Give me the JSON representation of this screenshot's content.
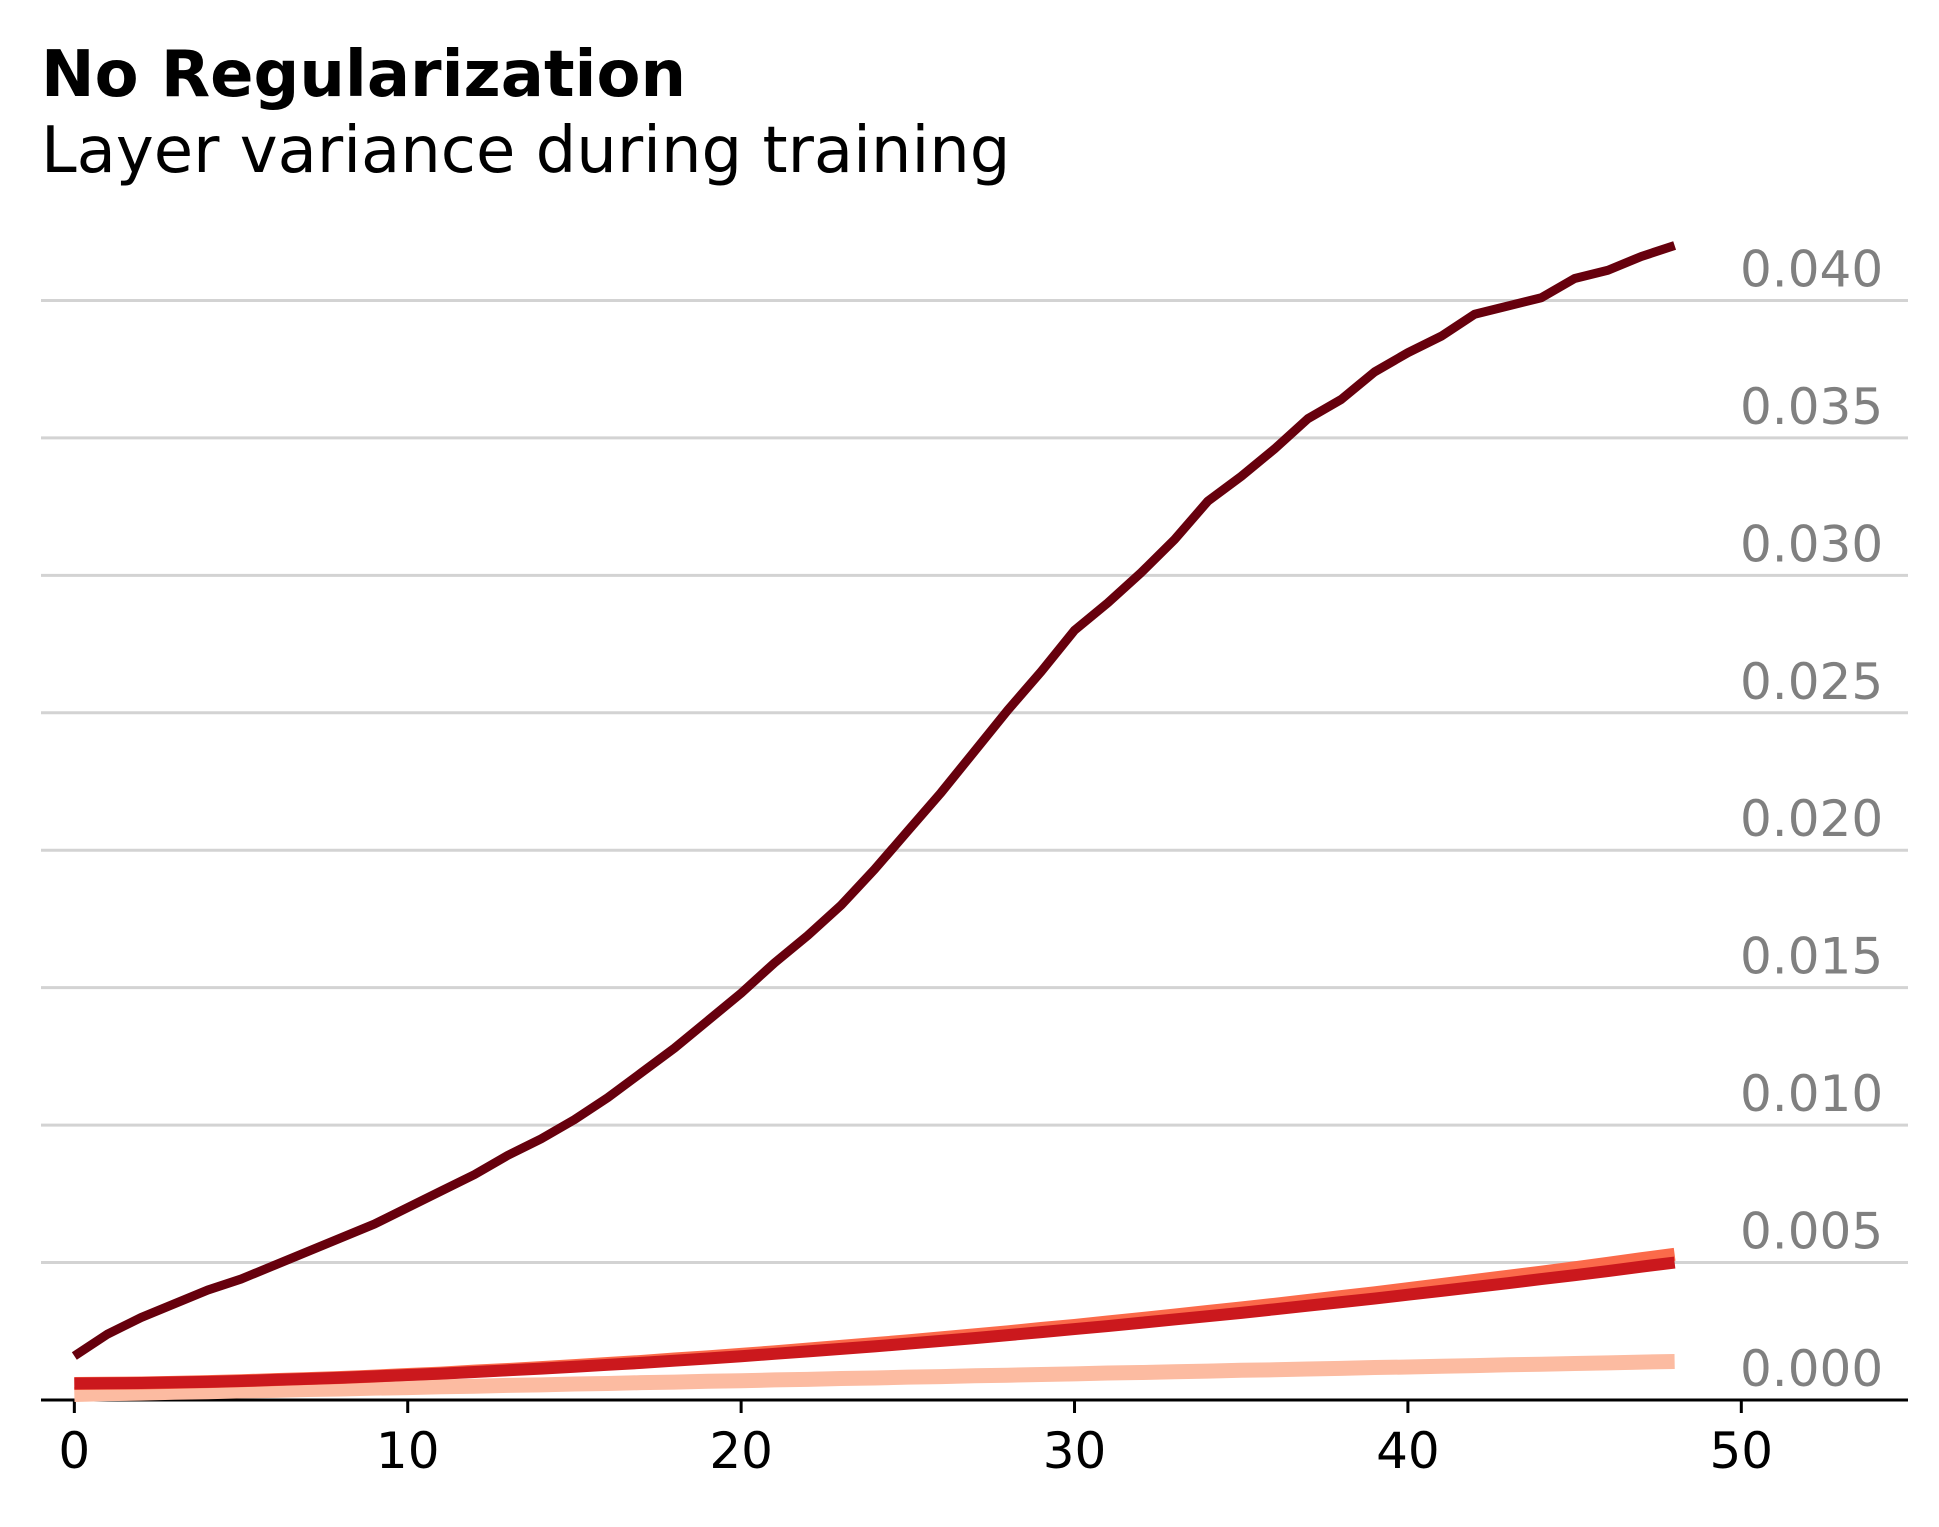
{
  "chart_data": {
    "type": "line",
    "title": "No Regularization",
    "subtitle": "Layer variance during training",
    "x": [
      0,
      1,
      2,
      3,
      4,
      5,
      6,
      7,
      8,
      9,
      10,
      11,
      12,
      13,
      14,
      15,
      16,
      17,
      18,
      19,
      20,
      21,
      22,
      23,
      24,
      25,
      26,
      27,
      28,
      29,
      30,
      31,
      32,
      33,
      34,
      35,
      36,
      37,
      38,
      39,
      40,
      41,
      42,
      43,
      44,
      45,
      46,
      47,
      48
    ],
    "series": [
      {
        "color": "#fcbba1",
        "values": [
          0.0002,
          0.00023,
          0.00025,
          0.00028,
          0.0003,
          0.00033,
          0.00035,
          0.00038,
          0.0004,
          0.00043,
          0.00045,
          0.00048,
          0.0005,
          0.00053,
          0.00055,
          0.00058,
          0.0006,
          0.00063,
          0.00065,
          0.00068,
          0.0007,
          0.00073,
          0.00075,
          0.00078,
          0.0008,
          0.00083,
          0.00085,
          0.00088,
          0.0009,
          0.00093,
          0.00095,
          0.00098,
          0.001,
          0.00103,
          0.00105,
          0.00108,
          0.0011,
          0.00113,
          0.00115,
          0.00118,
          0.0012,
          0.00123,
          0.00125,
          0.00128,
          0.0013,
          0.00133,
          0.00135,
          0.00138,
          0.0014
        ]
      },
      {
        "color": "#fb6a4a",
        "values": [
          0.0006,
          0.00061,
          0.00062,
          0.00064,
          0.00067,
          0.0007,
          0.00074,
          0.00078,
          0.00082,
          0.00087,
          0.00093,
          0.00098,
          0.00105,
          0.00111,
          0.00118,
          0.00125,
          0.00133,
          0.0014,
          0.00149,
          0.00157,
          0.00166,
          0.00175,
          0.00185,
          0.00195,
          0.00205,
          0.00215,
          0.00226,
          0.00237,
          0.00248,
          0.0026,
          0.00271,
          0.00284,
          0.00296,
          0.00309,
          0.00322,
          0.00335,
          0.00348,
          0.00362,
          0.00376,
          0.0039,
          0.00405,
          0.0042,
          0.00435,
          0.0045,
          0.00465,
          0.00481,
          0.00497,
          0.00514,
          0.0053
        ]
      },
      {
        "color": "#cb181d",
        "values": [
          0.0006,
          0.00061,
          0.00062,
          0.00064,
          0.00066,
          0.00069,
          0.00073,
          0.00077,
          0.00081,
          0.00086,
          0.00091,
          0.00096,
          0.00102,
          0.00108,
          0.00114,
          0.00121,
          0.00128,
          0.00135,
          0.00143,
          0.00151,
          0.00159,
          0.00168,
          0.00177,
          0.00186,
          0.00195,
          0.00205,
          0.00215,
          0.00225,
          0.00236,
          0.00247,
          0.00258,
          0.00269,
          0.00281,
          0.00293,
          0.00305,
          0.00317,
          0.0033,
          0.00343,
          0.00356,
          0.00369,
          0.00383,
          0.00397,
          0.00411,
          0.00425,
          0.0044,
          0.00454,
          0.00469,
          0.00485,
          0.005
        ]
      },
      {
        "color": "#67000d",
        "values": [
          0.0016,
          0.0024,
          0.003,
          0.0035,
          0.004,
          0.0044,
          0.0049,
          0.0054,
          0.0059,
          0.0064,
          0.007,
          0.0076,
          0.0082,
          0.0089,
          0.0095,
          0.0102,
          0.011,
          0.0119,
          0.0128,
          0.0138,
          0.0148,
          0.0159,
          0.0169,
          0.018,
          0.0193,
          0.0207,
          0.0221,
          0.0236,
          0.0251,
          0.0265,
          0.028,
          0.029,
          0.0301,
          0.0313,
          0.0327,
          0.0336,
          0.0346,
          0.0357,
          0.0364,
          0.0374,
          0.0381,
          0.0387,
          0.0395,
          0.0398,
          0.0401,
          0.0408,
          0.0411,
          0.0416,
          0.042
        ]
      }
    ],
    "xlim": [
      -1,
      55
    ],
    "xticks": [
      0,
      10,
      20,
      30,
      40,
      50
    ],
    "ylim": [
      0,
      0.043
    ],
    "yticks": [
      {
        "value": 0,
        "label": "0.000"
      },
      {
        "value": 0.005,
        "label": "0.005"
      },
      {
        "value": 0.01,
        "label": "0.010"
      },
      {
        "value": 0.015,
        "label": "0.015"
      },
      {
        "value": 0.02,
        "label": "0.020"
      },
      {
        "value": 0.025,
        "label": "0.025"
      },
      {
        "value": 0.03,
        "label": "0.030"
      },
      {
        "value": 0.035,
        "label": "0.035"
      },
      {
        "value": 0.04,
        "label": "0.040"
      }
    ],
    "grid": true
  }
}
